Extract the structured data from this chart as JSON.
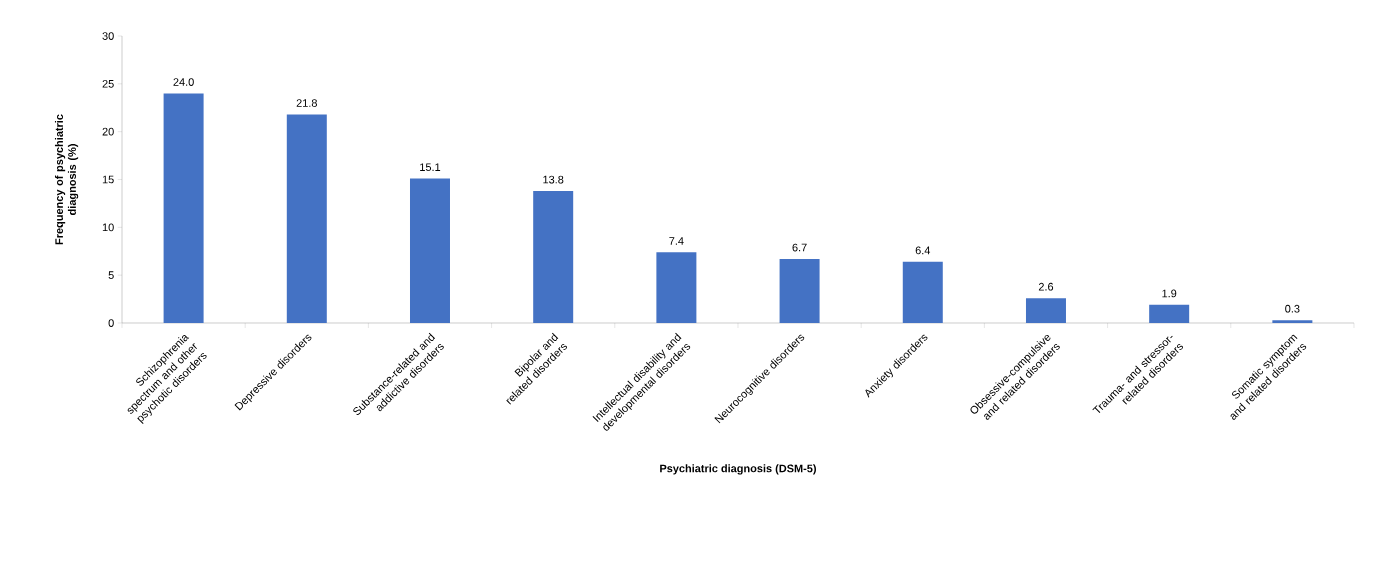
{
  "chart_data": {
    "type": "bar",
    "xlabel": "Psychiatric diagnosis (DSM-5)",
    "ylabel": "Frequency of psychiatric diagnosis (%)",
    "categories": [
      "Schizophrenia spectrum and other psychotic disorders",
      "Depressive disorders",
      "Substance-related and addictive disorders",
      "Bipolar and related disorders",
      "Intellectual disability and developmental disorders",
      "Neurocognitive disorders",
      "Anxiety disorders",
      "Obsessive-compulsive and related disorders",
      "Trauma- and stressor-related disorders",
      "Somatic symptom and related disorders"
    ],
    "values": [
      24.0,
      21.8,
      15.1,
      13.8,
      7.4,
      6.7,
      6.4,
      2.6,
      1.9,
      0.3
    ],
    "color": "#4472c4",
    "ylim": [
      0,
      30
    ],
    "yticks": [
      0,
      5,
      10,
      15,
      20,
      25,
      30
    ],
    "value_labels": [
      "24.0",
      "21.8",
      "15.1",
      "13.8",
      "7.4",
      "6.7",
      "6.4",
      "2.6",
      "1.9",
      "0.3"
    ]
  }
}
